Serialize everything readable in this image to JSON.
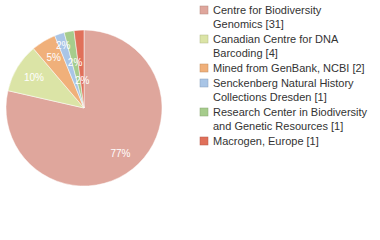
{
  "chart_data": {
    "type": "pie",
    "categories": [
      "Centre for Biodiversity Genomics [31]",
      "Canadian Centre for DNA Barcoding [4]",
      "Mined from GenBank, NCBI [2]",
      "Senckenberg Natural History Collections Dresden [1]",
      "Research Center in Biodiversity and Genetic Resources [1]",
      "Macrogen, Europe [1]"
    ],
    "values": [
      77,
      10,
      5,
      2,
      2,
      2
    ],
    "value_labels": [
      "77%",
      "10%",
      "5%",
      "2%",
      "2%",
      "2%"
    ],
    "colors": [
      "#dfa69c",
      "#dbe4a6",
      "#f0b07a",
      "#a9c5e6",
      "#a6cc8c",
      "#e0705a"
    ],
    "data_labels": true,
    "legend": "right"
  }
}
